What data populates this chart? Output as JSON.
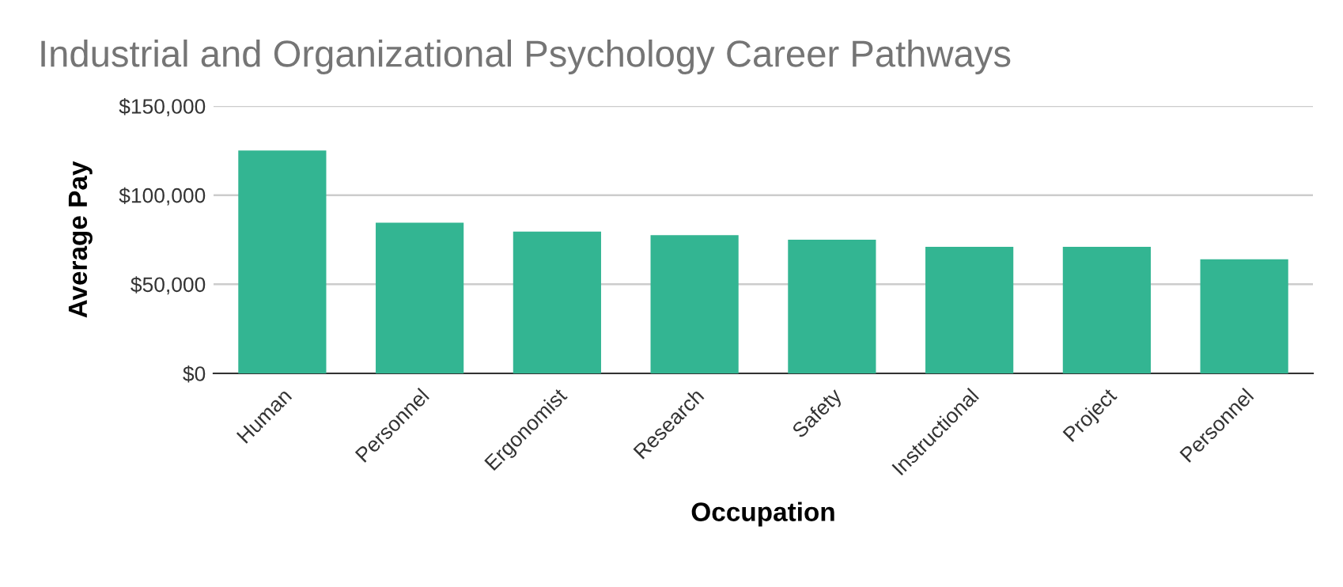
{
  "chart_data": {
    "type": "bar",
    "title": "Industrial and Organizational Psychology Career Pathways",
    "xlabel": "Occupation",
    "ylabel": "Average Pay",
    "categories": [
      "Human",
      "Personnel",
      "Ergonomist",
      "Research",
      "Safety",
      "Instructional",
      "Project",
      "Personnel"
    ],
    "values": [
      125000,
      84500,
      79500,
      77500,
      75000,
      71000,
      71000,
      64000
    ],
    "color": "#33b592",
    "ylim": [
      0,
      150000
    ],
    "yticks": [
      {
        "value": 0,
        "label": "$0"
      },
      {
        "value": 50000,
        "label": "$50,000"
      },
      {
        "value": 100000,
        "label": "$100,000"
      },
      {
        "value": 150000,
        "label": "$150,000"
      }
    ],
    "grid": "y",
    "legend": false
  }
}
